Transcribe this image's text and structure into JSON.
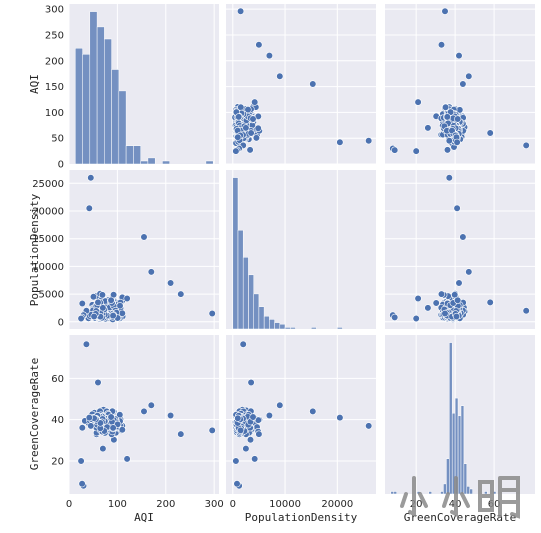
{
  "chart_data": {
    "type": "scatter",
    "variables": [
      "AQI",
      "PopulationDensity",
      "GreenCoverageRate"
    ],
    "axis_labels": [
      "AQI",
      "PopulationDensity",
      "GreenCoverageRate"
    ],
    "ranges": {
      "AQI": [
        0,
        310
      ],
      "PopulationDensity": [
        -1300,
        27400
      ],
      "GreenCoverageRate": [
        4,
        81
      ]
    },
    "ticks": {
      "AQI": [
        0,
        50,
        100,
        150,
        200,
        250,
        300
      ],
      "AQI_x": [
        0,
        100,
        200,
        300
      ],
      "PopulationDensity": [
        0,
        5000,
        10000,
        15000,
        20000,
        25000
      ],
      "PopulationDensity_x": [
        0,
        10000,
        20000
      ],
      "GreenCoverageRate": [
        20,
        40,
        60
      ],
      "GreenCoverageRate_x": [
        20,
        40,
        60
      ]
    },
    "grid": true,
    "diagonal": "histogram",
    "points": {
      "AQI": [],
      "PopulationDensity": [],
      "GreenCoverageRate": []
    },
    "histograms": {
      "AQI": {
        "edges": [
          13,
          28,
          43,
          58,
          73,
          88,
          103,
          118,
          133,
          148,
          163,
          178,
          193,
          208,
          223,
          238,
          253,
          268,
          283,
          298
        ],
        "counts": [
          38,
          36,
          50,
          45,
          41,
          31,
          24,
          6,
          6,
          1,
          2,
          0,
          1,
          0,
          0,
          0,
          0,
          0,
          1
        ]
      },
      "PopulationDensity": {
        "edges": [
          0,
          1000,
          2000,
          3000,
          4000,
          5000,
          6000,
          7000,
          8000,
          9000,
          10000,
          11000,
          12000,
          13000,
          14000,
          15000,
          16000,
          17000,
          18000,
          19000,
          20000,
          21000,
          22000,
          23000,
          24000,
          25000,
          26000
        ],
        "counts": [
          95,
          62,
          45,
          34,
          22,
          14,
          8,
          6,
          4,
          3,
          1,
          1,
          0,
          0,
          0,
          1,
          0,
          0,
          0,
          0,
          1,
          0,
          0,
          0,
          0,
          0,
          1
        ]
      },
      "GreenCoverageRate": {
        "edges": [
          7,
          8.5,
          10,
          11.5,
          13,
          14.5,
          16,
          17.5,
          19,
          20.5,
          22,
          23.5,
          25,
          26.5,
          28,
          29.5,
          31,
          32.5,
          34,
          35.5,
          37,
          38.5,
          40,
          41.5,
          43,
          44.5,
          46,
          47.5,
          49,
          50.5,
          52,
          53.5,
          55,
          56.5,
          58,
          59.5,
          61,
          62.5,
          64,
          65.5,
          67,
          68.5,
          70,
          71.5,
          73,
          74.5,
          76,
          77.5
        ],
        "counts": [
          1,
          1,
          0,
          0,
          0,
          0,
          0,
          0,
          0,
          1,
          0,
          0,
          0,
          1,
          0,
          0,
          0,
          1,
          4,
          14,
          60,
          32,
          38,
          31,
          35,
          12,
          3,
          2,
          0,
          0,
          0,
          0,
          1,
          0,
          0,
          1,
          0,
          0,
          0,
          0,
          0,
          0,
          0,
          0,
          0,
          0,
          0,
          1
        ]
      }
    }
  },
  "watermark_text": "小小明",
  "colors": {
    "face": "#eaeaf2",
    "grid": "#ffffff",
    "marker": "#4c72b0",
    "marker_edge": "#ffffff",
    "bar": "#4c72b0",
    "tick_text": "#262626",
    "watermark": "#8a8a8a"
  }
}
